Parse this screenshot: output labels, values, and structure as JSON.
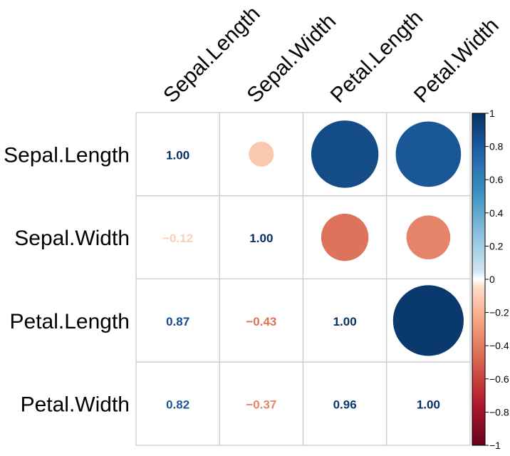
{
  "chart_data": {
    "type": "heatmap",
    "title": "",
    "variables": [
      "Sepal.Length",
      "Sepal.Width",
      "Petal.Length",
      "Petal.Width"
    ],
    "matrix": [
      [
        1.0,
        -0.12,
        0.87,
        0.82
      ],
      [
        -0.12,
        1.0,
        -0.43,
        -0.37
      ],
      [
        0.87,
        -0.43,
        1.0,
        0.96
      ],
      [
        0.82,
        -0.37,
        0.96,
        1.0
      ]
    ],
    "display": {
      "upper": "circle",
      "lower": "number",
      "diagonal": "number"
    },
    "number_labels": [
      [
        "1.00",
        "",
        "",
        ""
      ],
      [
        "−0.12",
        "1.00",
        "",
        ""
      ],
      [
        "0.87",
        "−0.43",
        "1.00",
        ""
      ],
      [
        "0.82",
        "−0.37",
        "0.96",
        "1.00"
      ]
    ],
    "colorbar": {
      "range": [
        -1,
        1
      ],
      "ticks": [
        "1",
        "0.8",
        "0.6",
        "0.4",
        "0.2",
        "0",
        "−0.2",
        "−0.4",
        "−0.6",
        "−0.8",
        "−1"
      ],
      "tick_values": [
        1,
        0.8,
        0.6,
        0.4,
        0.2,
        0,
        -0.2,
        -0.4,
        -0.6,
        -0.8,
        -1
      ]
    },
    "grid": true,
    "colors": {
      "neg_strong": "#67001f",
      "neutral": "#ffffff",
      "pos_strong": "#053061",
      "grid": "#c8c8c8"
    }
  }
}
